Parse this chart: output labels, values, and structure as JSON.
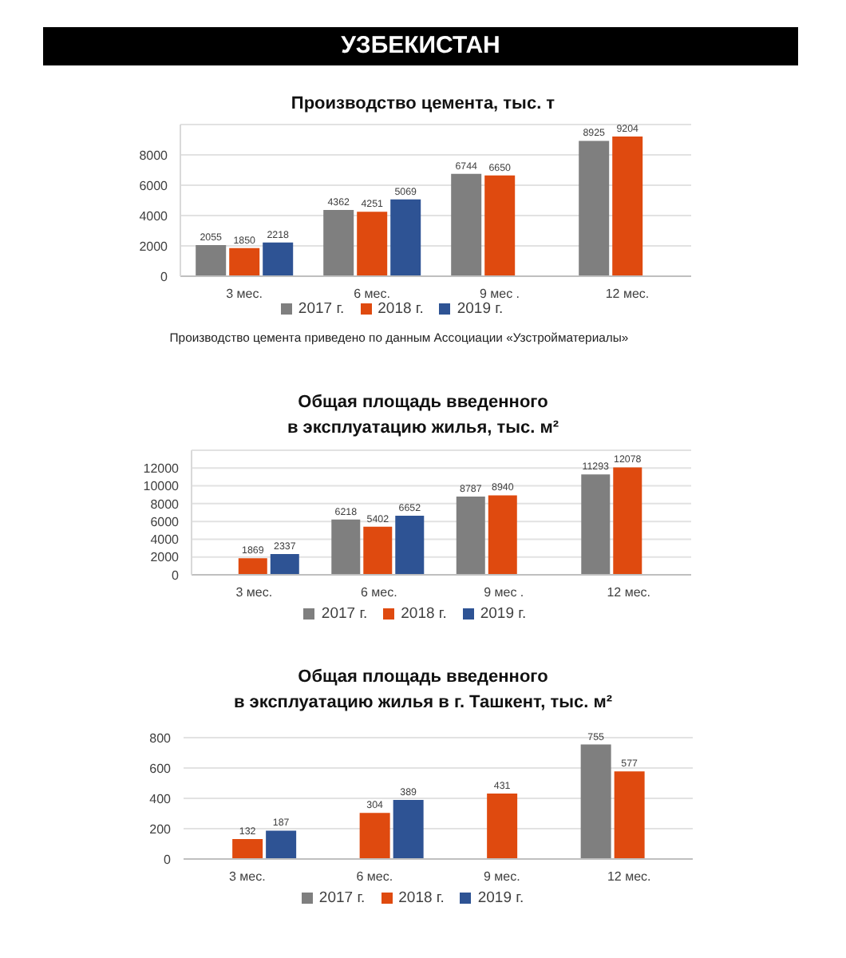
{
  "chart_data": [
    {
      "type": "other",
      "title": "УЗБЕКИСТАН"
    },
    {
      "type": "bar",
      "title": "Производство цемента, тыс. т",
      "categories": [
        "3 мес.",
        "6 мес.",
        "9 мес .",
        "12 мес."
      ],
      "series": [
        {
          "name": "2017 г.",
          "color": "#7f7f7f",
          "values": [
            2055,
            4362,
            6744,
            8925
          ]
        },
        {
          "name": "2018 г.",
          "color": "#df4a0f",
          "values": [
            1850,
            4251,
            6650,
            9204
          ]
        },
        {
          "name": "2019 г.",
          "color": "#2e5394",
          "values": [
            2218,
            5069,
            null,
            null
          ]
        }
      ],
      "ylim": [
        0,
        10000
      ],
      "yticks": [
        0,
        2000,
        4000,
        6000,
        8000
      ],
      "grid": "y",
      "legend": "bottom",
      "data_labels": true,
      "annotations": [
        "Производство цемента приведено по данным Ассоциации «Узстройматериалы»"
      ]
    },
    {
      "type": "bar",
      "title": "Общая площадь введенного\nв эксплуатацию жилья, тыс. м²",
      "categories": [
        "3 мес.",
        "6 мес.",
        "9 мес .",
        "12 мес."
      ],
      "series": [
        {
          "name": "2017 г.",
          "color": "#7f7f7f",
          "values": [
            null,
            6218,
            8787,
            11293
          ]
        },
        {
          "name": "2018 г.",
          "color": "#df4a0f",
          "values": [
            1869,
            5402,
            8940,
            12078
          ]
        },
        {
          "name": "2019 г.",
          "color": "#2e5394",
          "values": [
            2337,
            6652,
            null,
            null
          ]
        }
      ],
      "ylim": [
        0,
        14000
      ],
      "yticks": [
        0,
        2000,
        4000,
        6000,
        8000,
        10000,
        12000
      ],
      "grid": "y",
      "legend": "bottom",
      "data_labels": true
    },
    {
      "type": "bar",
      "title": "Общая площадь введенного\nв эксплуатацию жилья в г. Ташкент, тыс. м²",
      "categories": [
        "3 мес.",
        "6 мес.",
        "9 мес.",
        "12 мес."
      ],
      "series": [
        {
          "name": "2017 г.",
          "color": "#7f7f7f",
          "values": [
            null,
            null,
            null,
            755
          ]
        },
        {
          "name": "2018 г.",
          "color": "#df4a0f",
          "values": [
            132,
            304,
            431,
            577
          ]
        },
        {
          "name": "2019 г.",
          "color": "#2e5394",
          "values": [
            187,
            389,
            null,
            null
          ]
        }
      ],
      "ylim": [
        0,
        800
      ],
      "yticks": [
        0,
        200,
        400,
        600,
        800
      ],
      "grid": "y",
      "legend": "bottom",
      "data_labels": true
    }
  ]
}
